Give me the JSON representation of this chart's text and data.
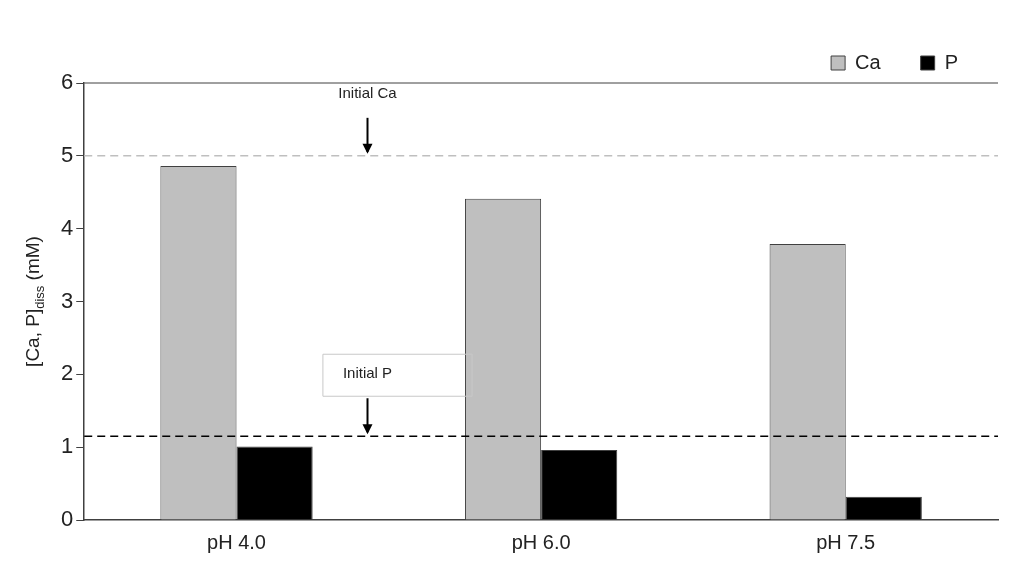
{
  "chart_data": {
    "type": "bar",
    "ylabel": "[Ca, P]$_{diss}$ (mM)",
    "categories": [
      "pH 4.0",
      "pH 6.0",
      "pH 7.5"
    ],
    "series": [
      {
        "name": "Ca",
        "color": "#bfbfbf",
        "values": [
          4.86,
          4.41,
          3.79
        ]
      },
      {
        "name": "P",
        "color": "#000000",
        "values": [
          1.01,
          0.96,
          0.32
        ]
      }
    ],
    "ylim": [
      0,
      6
    ],
    "yticks": [
      0,
      1,
      2,
      3,
      4,
      5,
      6
    ],
    "grid": false,
    "legend": "top right",
    "ref_lines": [
      {
        "axis": "y",
        "value": 5,
        "label": "Initial Ca",
        "color": "#bfbfbf",
        "line_style": "dashed"
      },
      {
        "axis": "y",
        "value": 1.15,
        "label": "Initial P",
        "color": "#000000",
        "line_style": "dashed"
      }
    ]
  }
}
